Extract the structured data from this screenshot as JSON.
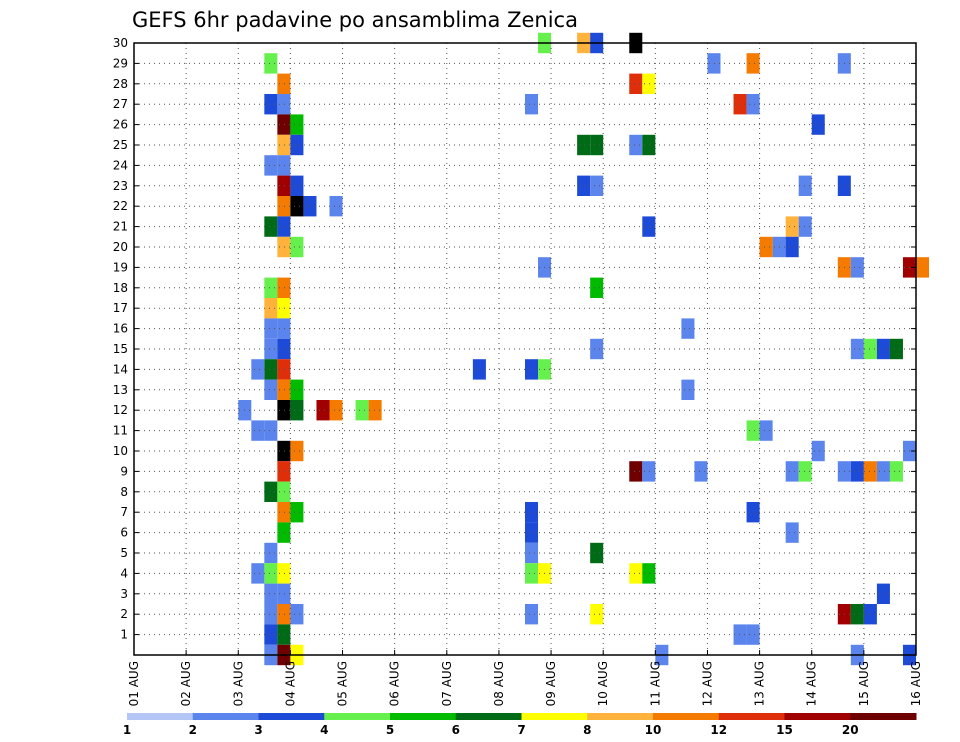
{
  "chart_data": {
    "type": "heatmap",
    "title": "GEFS 6hr padavine po ansamblima Zenica",
    "x_tick_labels": [
      "01 AUG",
      "02 AUG",
      "03 AUG",
      "04 AUG",
      "05 AUG",
      "06 AUG",
      "07 AUG",
      "08 AUG",
      "09 AUG",
      "10 AUG",
      "11 AUG",
      "12 AUG",
      "13 AUG",
      "14 AUG",
      "15 AUG",
      "16 AUG"
    ],
    "y_tick_labels": [
      "1",
      "2",
      "3",
      "4",
      "5",
      "6",
      "7",
      "8",
      "9",
      "10",
      "11",
      "12",
      "13",
      "14",
      "15",
      "16",
      "17",
      "18",
      "19",
      "20",
      "21",
      "22",
      "23",
      "24",
      "25",
      "26",
      "27",
      "28",
      "29",
      "30"
    ],
    "ylim": [
      0,
      30
    ],
    "x_range_days": [
      0,
      15
    ],
    "x_step_days": 0.25,
    "grid": true,
    "colorbar": {
      "labels": [
        "1",
        "2",
        "3",
        "4",
        "5",
        "6",
        "7",
        "8",
        "10",
        "12",
        "15",
        "20"
      ],
      "colors": [
        "#b3c6f5",
        "#5b84ec",
        "#1d4ad6",
        "#66f04d",
        "#00bb00",
        "#006b16",
        "#ffff00",
        "#ffb33d",
        "#f57a00",
        "#df2e0a",
        "#a00000",
        "#6e0000"
      ]
    },
    "cells": [
      [
        2.5,
        29,
        3
      ],
      [
        2.5,
        27,
        2
      ],
      [
        2.5,
        24,
        1
      ],
      [
        2.5,
        21,
        5
      ],
      [
        2.5,
        18,
        3
      ],
      [
        2.5,
        17,
        7
      ],
      [
        2.5,
        16,
        1
      ],
      [
        2.5,
        15,
        1
      ],
      [
        2.5,
        14,
        5
      ],
      [
        2.5,
        13,
        1
      ],
      [
        2.5,
        11,
        1
      ],
      [
        2.5,
        8,
        5
      ],
      [
        2.5,
        5,
        1
      ],
      [
        2.5,
        4,
        3
      ],
      [
        2.5,
        3,
        1
      ],
      [
        2.5,
        2,
        1
      ],
      [
        2.5,
        1,
        2
      ],
      [
        2.5,
        0,
        1
      ],
      [
        2.25,
        14,
        1
      ],
      [
        2.25,
        11,
        1
      ],
      [
        2.25,
        4,
        1
      ],
      [
        2.0,
        12,
        1
      ],
      [
        2.75,
        28,
        8
      ],
      [
        2.75,
        27,
        1
      ],
      [
        2.75,
        26,
        11
      ],
      [
        2.75,
        25,
        7
      ],
      [
        2.75,
        24,
        1
      ],
      [
        2.75,
        23,
        10
      ],
      [
        2.75,
        22,
        8
      ],
      [
        2.75,
        21,
        2
      ],
      [
        2.75,
        20,
        7
      ],
      [
        2.75,
        18,
        8
      ],
      [
        2.75,
        17,
        6
      ],
      [
        2.75,
        16,
        1
      ],
      [
        2.75,
        15,
        2
      ],
      [
        2.75,
        14,
        9
      ],
      [
        2.75,
        13,
        8
      ],
      [
        2.75,
        12,
        12
      ],
      [
        2.75,
        10,
        12
      ],
      [
        2.75,
        9,
        9
      ],
      [
        2.75,
        8,
        3
      ],
      [
        2.75,
        7,
        8
      ],
      [
        2.75,
        6,
        4
      ],
      [
        2.75,
        4,
        6
      ],
      [
        2.75,
        3,
        1
      ],
      [
        2.75,
        2,
        8
      ],
      [
        2.75,
        1,
        5
      ],
      [
        2.75,
        0,
        11
      ],
      [
        3.0,
        26,
        4
      ],
      [
        3.0,
        25,
        2
      ],
      [
        3.0,
        23,
        2
      ],
      [
        3.0,
        22,
        12
      ],
      [
        3.0,
        20,
        3
      ],
      [
        3.0,
        13,
        4
      ],
      [
        3.0,
        12,
        5
      ],
      [
        3.0,
        10,
        8
      ],
      [
        3.0,
        7,
        4
      ],
      [
        3.0,
        2,
        1
      ],
      [
        3.0,
        0,
        6
      ],
      [
        3.25,
        22,
        2
      ],
      [
        3.5,
        12,
        10
      ],
      [
        3.75,
        22,
        1
      ],
      [
        3.75,
        12,
        8
      ],
      [
        4.25,
        12,
        3
      ],
      [
        4.5,
        12,
        8
      ],
      [
        6.5,
        14,
        2
      ],
      [
        7.5,
        27,
        1
      ],
      [
        7.5,
        14,
        2
      ],
      [
        7.5,
        7,
        2
      ],
      [
        7.5,
        6,
        2
      ],
      [
        7.5,
        5,
        1
      ],
      [
        7.5,
        4,
        3
      ],
      [
        7.5,
        2,
        1
      ],
      [
        7.75,
        30,
        3
      ],
      [
        7.75,
        19,
        1
      ],
      [
        7.75,
        14,
        3
      ],
      [
        7.75,
        4,
        6
      ],
      [
        8.5,
        30,
        7
      ],
      [
        8.5,
        25,
        5
      ],
      [
        8.5,
        23,
        2
      ],
      [
        8.75,
        30,
        2
      ],
      [
        8.75,
        25,
        5
      ],
      [
        8.75,
        23,
        1
      ],
      [
        8.75,
        18,
        4
      ],
      [
        8.75,
        15,
        1
      ],
      [
        8.75,
        5,
        5
      ],
      [
        8.75,
        2,
        6
      ],
      [
        9.5,
        30,
        12
      ],
      [
        9.5,
        28,
        9
      ],
      [
        9.5,
        25,
        1
      ],
      [
        9.5,
        9,
        11
      ],
      [
        9.5,
        4,
        6
      ],
      [
        9.75,
        28,
        6
      ],
      [
        9.75,
        25,
        5
      ],
      [
        9.75,
        21,
        2
      ],
      [
        9.75,
        9,
        1
      ],
      [
        9.75,
        4,
        4
      ],
      [
        10.0,
        0,
        1
      ],
      [
        10.5,
        16,
        1
      ],
      [
        10.5,
        13,
        1
      ],
      [
        10.75,
        9,
        1
      ],
      [
        11.0,
        29,
        1
      ],
      [
        11.5,
        27,
        9
      ],
      [
        11.5,
        1,
        1
      ],
      [
        11.75,
        29,
        8
      ],
      [
        11.75,
        27,
        1
      ],
      [
        11.75,
        11,
        3
      ],
      [
        11.75,
        7,
        2
      ],
      [
        11.75,
        1,
        1
      ],
      [
        12.0,
        20,
        8
      ],
      [
        12.0,
        11,
        1
      ],
      [
        12.25,
        20,
        1
      ],
      [
        12.5,
        21,
        7
      ],
      [
        12.5,
        20,
        2
      ],
      [
        12.5,
        9,
        1
      ],
      [
        12.5,
        6,
        1
      ],
      [
        12.75,
        23,
        1
      ],
      [
        12.75,
        21,
        1
      ],
      [
        12.75,
        9,
        3
      ],
      [
        13.0,
        26,
        2
      ],
      [
        13.0,
        10,
        1
      ],
      [
        13.5,
        29,
        1
      ],
      [
        13.5,
        23,
        2
      ],
      [
        13.5,
        19,
        8
      ],
      [
        13.5,
        9,
        1
      ],
      [
        13.5,
        2,
        10
      ],
      [
        13.75,
        19,
        1
      ],
      [
        13.75,
        15,
        1
      ],
      [
        13.75,
        9,
        2
      ],
      [
        13.75,
        2,
        5
      ],
      [
        13.75,
        0,
        1
      ],
      [
        14.0,
        15,
        3
      ],
      [
        14.0,
        9,
        8
      ],
      [
        14.0,
        2,
        2
      ],
      [
        14.25,
        15,
        2
      ],
      [
        14.25,
        9,
        1
      ],
      [
        14.25,
        3,
        2
      ],
      [
        14.5,
        15,
        5
      ],
      [
        14.5,
        9,
        3
      ],
      [
        14.75,
        19,
        10
      ],
      [
        14.75,
        10,
        1
      ],
      [
        14.75,
        0,
        2
      ],
      [
        15.0,
        19,
        8
      ]
    ]
  }
}
